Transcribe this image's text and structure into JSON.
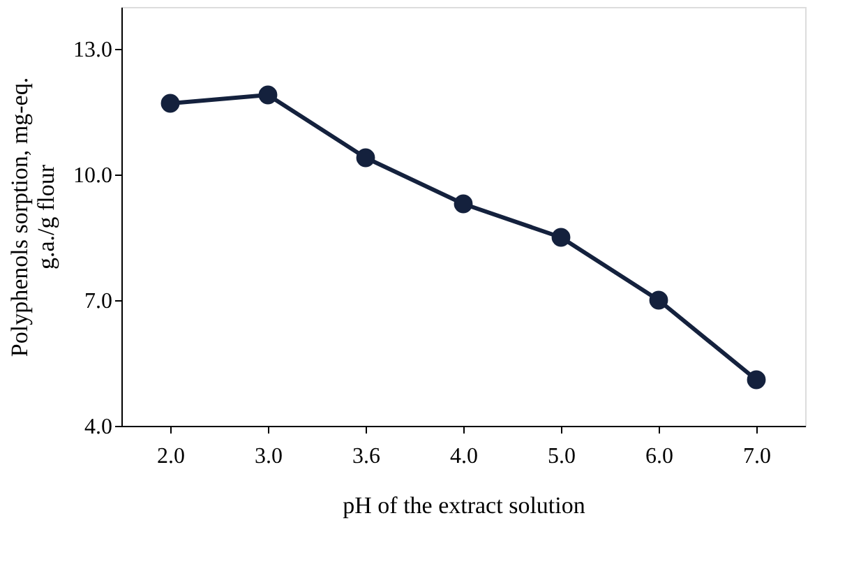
{
  "chart_data": {
    "type": "line",
    "xlabel": "pH of the extract solution",
    "ylabel": "Polyphenols sorption, mg-eq.\ng.a./g flour",
    "categories": [
      "2.0",
      "3.0",
      "3.6",
      "4.0",
      "5.0",
      "6.0",
      "7.0"
    ],
    "series": [
      {
        "color": "#14213d",
        "values": [
          11.7,
          11.9,
          10.4,
          9.3,
          8.5,
          7.0,
          5.1
        ]
      }
    ],
    "ylim": [
      4,
      14
    ],
    "yticks": [
      {
        "value": 4,
        "label": "4.0"
      },
      {
        "value": 7,
        "label": "7.0"
      },
      {
        "value": 10,
        "label": "10.0"
      },
      {
        "value": 13,
        "label": "13.0"
      }
    ],
    "grid": false,
    "marker": "circle",
    "line_style": "solid"
  }
}
